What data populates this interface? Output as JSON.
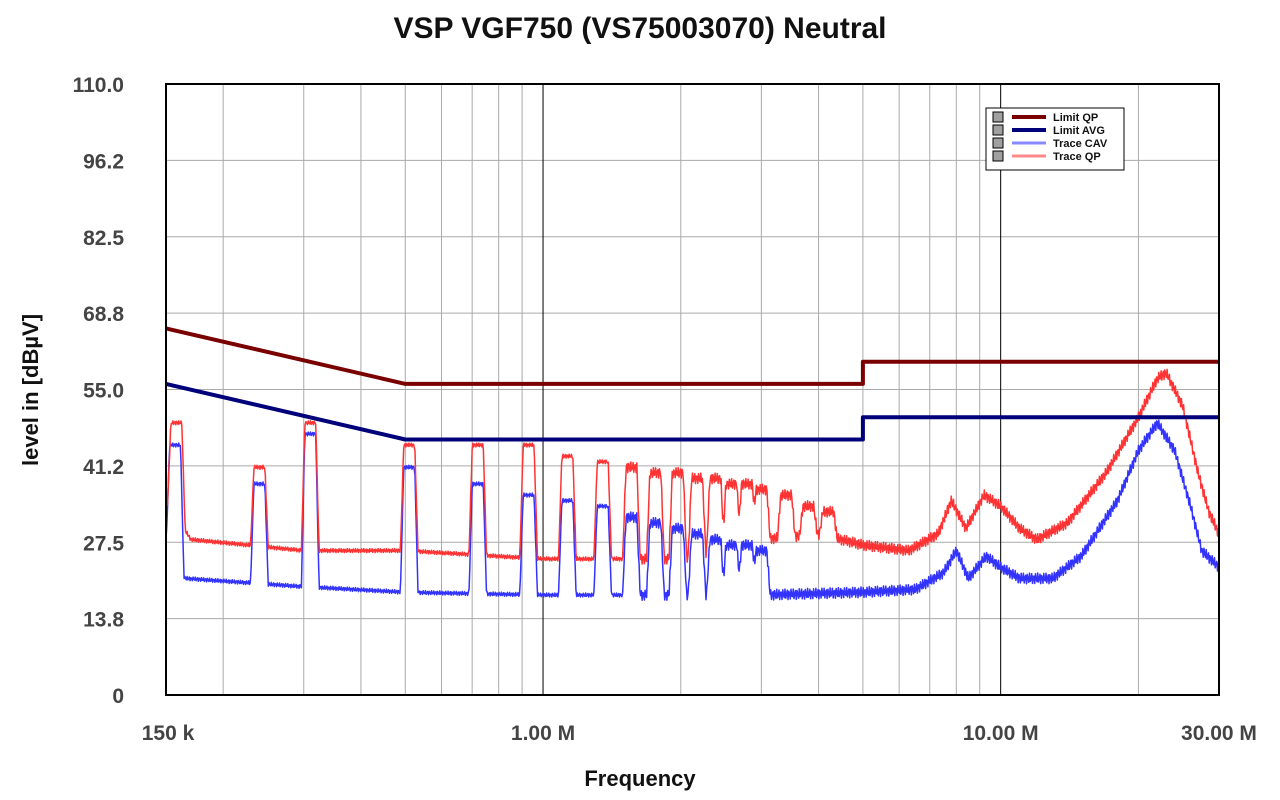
{
  "chart_data": {
    "type": "line",
    "title": "VSP VGF750 (VS75003070) Neutral",
    "xlabel": "Frequency",
    "ylabel": "level in [dBµV]",
    "xscale": "log",
    "xlim_mhz": [
      0.15,
      30
    ],
    "ylim": [
      0,
      110
    ],
    "yticks": [
      "0",
      "13.8",
      "27.5",
      "41.2",
      "55.0",
      "68.8",
      "82.5",
      "96.2",
      "110.0"
    ],
    "ytick_values": [
      0,
      13.75,
      27.5,
      41.25,
      55,
      68.75,
      82.5,
      96.25,
      110
    ],
    "xticks": [
      {
        "label": "150 k",
        "value_mhz": 0.15
      },
      {
        "label": "1.00 M",
        "value_mhz": 1
      },
      {
        "label": "10.00 M",
        "value_mhz": 10
      },
      {
        "label": "30.00 M",
        "value_mhz": 30
      }
    ],
    "grid": true,
    "legend_position": "top-right",
    "series": [
      {
        "name": "Limit QP",
        "color": "#7a0000",
        "width": 4,
        "points": [
          [
            0.15,
            66
          ],
          [
            0.5,
            56
          ],
          [
            5,
            56
          ],
          [
            5,
            60
          ],
          [
            30,
            60
          ]
        ]
      },
      {
        "name": "Limit AVG",
        "color": "#00007a",
        "width": 4,
        "points": [
          [
            0.15,
            56
          ],
          [
            0.5,
            46
          ],
          [
            5,
            46
          ],
          [
            5,
            50
          ],
          [
            30,
            50
          ]
        ]
      },
      {
        "name": "Trace CAV",
        "color": "#3333ff",
        "width": 1.5,
        "baseline": [
          [
            0.15,
            28
          ],
          [
            0.165,
            21
          ],
          [
            0.3,
            19.5
          ],
          [
            0.5,
            18.5
          ],
          [
            1,
            18
          ],
          [
            3,
            18
          ],
          [
            5,
            18.5
          ],
          [
            6.5,
            19
          ],
          [
            7.5,
            22
          ],
          [
            8,
            26
          ],
          [
            8.5,
            21
          ],
          [
            9.3,
            25
          ],
          [
            10,
            23
          ],
          [
            11,
            21
          ],
          [
            13,
            21
          ],
          [
            15,
            25
          ],
          [
            18,
            35
          ],
          [
            20,
            44
          ],
          [
            22,
            49
          ],
          [
            24,
            44
          ],
          [
            26,
            34
          ],
          [
            27.5,
            26
          ],
          [
            30,
            23
          ]
        ],
        "spikes": [
          [
            0.157,
            45
          ],
          [
            0.24,
            38
          ],
          [
            0.31,
            47
          ],
          [
            0.51,
            41
          ],
          [
            0.72,
            38
          ],
          [
            0.93,
            36
          ],
          [
            1.13,
            35
          ],
          [
            1.35,
            34
          ],
          [
            1.56,
            32
          ],
          [
            1.76,
            31
          ],
          [
            1.97,
            30
          ],
          [
            2.17,
            29
          ],
          [
            2.38,
            28
          ],
          [
            2.58,
            27
          ],
          [
            2.79,
            27
          ],
          [
            3.0,
            26
          ]
        ]
      },
      {
        "name": "Trace QP",
        "color": "#ff3333",
        "width": 1.5,
        "baseline": [
          [
            0.15,
            35
          ],
          [
            0.17,
            28
          ],
          [
            0.3,
            26
          ],
          [
            0.5,
            26
          ],
          [
            1,
            24.5
          ],
          [
            2,
            24.5
          ],
          [
            3,
            28
          ],
          [
            4,
            29
          ],
          [
            5,
            27
          ],
          [
            6.3,
            26
          ],
          [
            7.3,
            29
          ],
          [
            7.8,
            35
          ],
          [
            8.4,
            30
          ],
          [
            9.2,
            36
          ],
          [
            10,
            34
          ],
          [
            11,
            30
          ],
          [
            12,
            28
          ],
          [
            14,
            31
          ],
          [
            17,
            40
          ],
          [
            20,
            50
          ],
          [
            22,
            57
          ],
          [
            23,
            58
          ],
          [
            25,
            52
          ],
          [
            27,
            40
          ],
          [
            28.5,
            33
          ],
          [
            30,
            29
          ]
        ],
        "spikes": [
          [
            0.158,
            49
          ],
          [
            0.24,
            41
          ],
          [
            0.31,
            49
          ],
          [
            0.51,
            45
          ],
          [
            0.72,
            45
          ],
          [
            0.93,
            45
          ],
          [
            1.13,
            43
          ],
          [
            1.35,
            42
          ],
          [
            1.56,
            41
          ],
          [
            1.76,
            40
          ],
          [
            1.97,
            40
          ],
          [
            2.17,
            39
          ],
          [
            2.38,
            39
          ],
          [
            2.58,
            38
          ],
          [
            2.79,
            38
          ],
          [
            3.0,
            37
          ],
          [
            3.4,
            36
          ],
          [
            3.8,
            34
          ],
          [
            4.2,
            33
          ]
        ]
      }
    ]
  }
}
